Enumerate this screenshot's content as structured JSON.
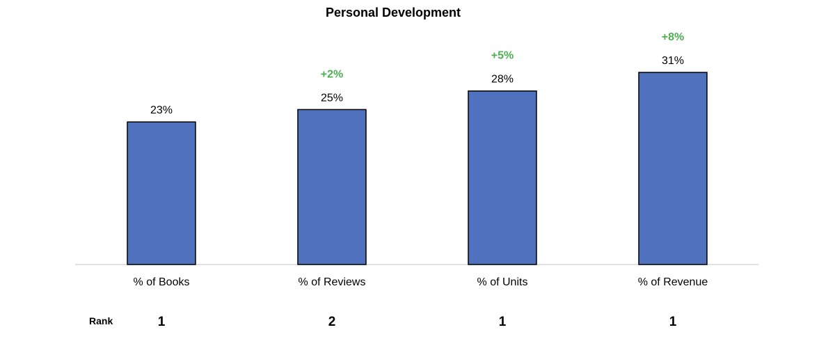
{
  "chart_data": {
    "type": "bar",
    "title": "Personal Development",
    "categories": [
      "% of Books",
      "% of Reviews",
      "% of Units",
      "% of Revenue"
    ],
    "values": [
      23,
      25,
      28,
      31
    ],
    "value_labels": [
      "23%",
      "25%",
      "28%",
      "31%"
    ],
    "deltas": [
      "",
      "+2%",
      "+5%",
      "+8%"
    ],
    "rank_label": "Rank",
    "ranks": [
      "1",
      "2",
      "1",
      "1"
    ],
    "xlabel": "",
    "ylabel": "",
    "ylim": [
      0,
      35
    ],
    "grid": false,
    "legend": "none",
    "colors": {
      "bar_fill": "#4F71BE",
      "bar_stroke": "#000000",
      "delta": "#4CAF50",
      "axis": "#d9d9d9",
      "text": "#000000"
    }
  }
}
